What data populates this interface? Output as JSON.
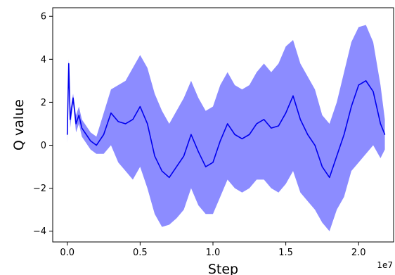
{
  "chart_data": {
    "type": "line",
    "xlabel": "Step",
    "ylabel": "Q value",
    "x_offset_label": "1e7",
    "xlim": [
      -0.1,
      2.24
    ],
    "ylim": [
      -4.5,
      6.4
    ],
    "xticks": [
      0.0,
      0.5,
      1.0,
      1.5,
      2.0
    ],
    "xtick_labels": [
      "0.0",
      "0.5",
      "1.0",
      "1.5",
      "2.0"
    ],
    "yticks": [
      -4,
      -2,
      0,
      2,
      4,
      6
    ],
    "ytick_labels": [
      "−4",
      "−2",
      "0",
      "2",
      "4",
      "6"
    ],
    "grid": false,
    "colors": {
      "line": "#0000ee",
      "band": "#8080ff"
    },
    "series": [
      {
        "type": "line_with_band",
        "x": [
          0.0,
          0.01,
          0.02,
          0.04,
          0.06,
          0.08,
          0.1,
          0.13,
          0.16,
          0.2,
          0.25,
          0.3,
          0.35,
          0.4,
          0.45,
          0.5,
          0.55,
          0.6,
          0.65,
          0.7,
          0.75,
          0.8,
          0.85,
          0.9,
          0.95,
          1.0,
          1.05,
          1.1,
          1.15,
          1.2,
          1.25,
          1.3,
          1.35,
          1.4,
          1.45,
          1.5,
          1.55,
          1.6,
          1.65,
          1.7,
          1.75,
          1.8,
          1.85,
          1.9,
          1.95,
          2.0,
          2.05,
          2.1,
          2.15,
          2.18
        ],
        "y": [
          0.5,
          3.8,
          1.2,
          2.2,
          1.0,
          1.4,
          0.8,
          0.5,
          0.2,
          0.0,
          0.5,
          1.5,
          1.1,
          1.0,
          1.2,
          1.8,
          1.0,
          -0.5,
          -1.2,
          -1.5,
          -1.0,
          -0.5,
          0.5,
          -0.3,
          -1.0,
          -0.8,
          0.2,
          1.0,
          0.5,
          0.3,
          0.5,
          1.0,
          1.2,
          0.8,
          0.9,
          1.5,
          2.3,
          1.2,
          0.5,
          0.0,
          -1.0,
          -1.5,
          -0.5,
          0.5,
          1.8,
          2.8,
          3.0,
          2.5,
          1.0,
          0.5
        ],
        "upper": [
          0.9,
          4.0,
          1.6,
          2.4,
          1.4,
          1.8,
          1.2,
          0.9,
          0.6,
          0.4,
          1.5,
          2.6,
          2.8,
          3.0,
          3.6,
          4.2,
          3.6,
          2.4,
          1.6,
          1.0,
          1.6,
          2.2,
          3.0,
          2.2,
          1.6,
          1.8,
          2.8,
          3.4,
          2.8,
          2.6,
          2.8,
          3.4,
          3.8,
          3.4,
          3.8,
          4.6,
          4.9,
          3.8,
          3.2,
          2.6,
          1.4,
          1.0,
          2.0,
          3.4,
          4.8,
          5.5,
          5.6,
          4.8,
          2.8,
          1.2
        ],
        "lower": [
          0.1,
          3.6,
          0.8,
          2.0,
          0.6,
          1.0,
          0.4,
          0.1,
          -0.2,
          -0.4,
          -0.4,
          0.0,
          -0.8,
          -1.2,
          -1.6,
          -1.0,
          -2.0,
          -3.2,
          -3.8,
          -3.7,
          -3.4,
          -3.0,
          -2.0,
          -2.8,
          -3.2,
          -3.2,
          -2.4,
          -1.6,
          -2.0,
          -2.2,
          -2.0,
          -1.6,
          -1.6,
          -2.0,
          -2.2,
          -1.8,
          -1.2,
          -2.2,
          -2.6,
          -3.0,
          -3.6,
          -4.0,
          -3.0,
          -2.4,
          -1.2,
          -0.8,
          -0.4,
          0.0,
          -0.6,
          -0.2
        ]
      }
    ]
  }
}
